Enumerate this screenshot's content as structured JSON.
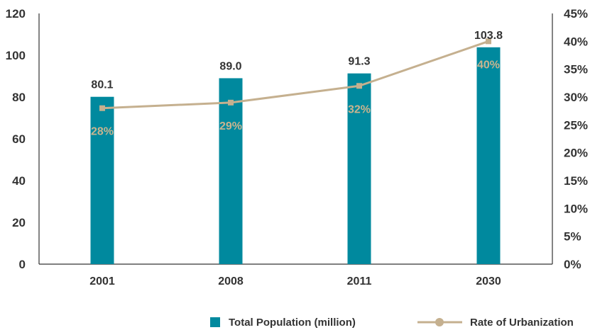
{
  "chart_data": {
    "type": "bar",
    "categories": [
      "2001",
      "2008",
      "2011",
      "2030"
    ],
    "series": [
      {
        "name": "Total Population (million)",
        "type": "bar",
        "axis": "left",
        "values": [
          80.1,
          89.0,
          91.3,
          103.8
        ],
        "value_labels": [
          "80.1",
          "89.0",
          "91.3",
          "103.8"
        ]
      },
      {
        "name": "Rate of Urbanization",
        "type": "line",
        "axis": "right",
        "values": [
          28,
          29,
          32,
          40
        ],
        "value_labels": [
          "28%",
          "29%",
          "32%",
          "40%"
        ]
      }
    ],
    "y_left": {
      "range": [
        0,
        120
      ],
      "ticks": [
        "0",
        "20",
        "40",
        "60",
        "80",
        "100",
        "120"
      ]
    },
    "y_right": {
      "range": [
        0,
        45
      ],
      "ticks": [
        "0%",
        "5%",
        "10%",
        "15%",
        "20%",
        "25%",
        "30%",
        "35%",
        "40%",
        "45%"
      ]
    },
    "grid": false,
    "legend_position": "bottom"
  },
  "colors": {
    "bar": "#00899e",
    "line": "#c5b08f",
    "point_label": "#c9b48f",
    "text": "#333333"
  }
}
